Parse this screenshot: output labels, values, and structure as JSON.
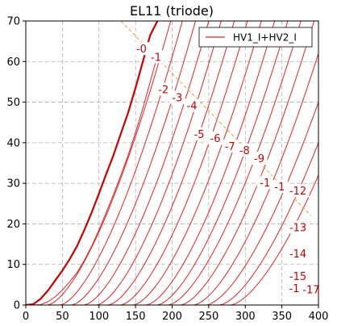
{
  "chart_data": {
    "type": "line",
    "title": "EL11 (triode)",
    "xlabel": "",
    "ylabel": "",
    "xlim": [
      0,
      400
    ],
    "ylim": [
      0,
      70
    ],
    "x_ticks": [
      0,
      50,
      100,
      150,
      200,
      250,
      300,
      350,
      400
    ],
    "y_ticks": [
      0,
      10,
      20,
      30,
      40,
      50,
      60,
      70
    ],
    "grid": true,
    "grid_style": "dashed",
    "legend": {
      "placement": "top-right",
      "entries": [
        "HV1_I+HV2_I"
      ]
    },
    "colors": {
      "curves": "#e32222",
      "zero_curve": "#cc0000",
      "load_line": "#f0a030",
      "grid": "#b0b0b0",
      "axis": "#000000"
    },
    "load_line": {
      "x": [
        130,
        390
      ],
      "y": [
        70,
        22
      ]
    },
    "curve_labels": [
      {
        "text": "-0",
        "x": 158,
        "y": 63
      },
      {
        "text": "-1",
        "x": 178,
        "y": 61
      },
      {
        "text": "-2",
        "x": 188,
        "y": 53
      },
      {
        "text": "-3",
        "x": 207,
        "y": 51
      },
      {
        "text": "-4",
        "x": 227,
        "y": 49
      },
      {
        "text": "-5",
        "x": 237,
        "y": 42
      },
      {
        "text": "-6",
        "x": 259,
        "y": 41
      },
      {
        "text": "-7",
        "x": 279,
        "y": 39
      },
      {
        "text": "-8",
        "x": 299,
        "y": 38
      },
      {
        "text": "-9",
        "x": 319,
        "y": 36
      },
      {
        "text": "-1",
        "x": 327,
        "y": 30
      },
      {
        "text": "-1",
        "x": 347,
        "y": 29
      },
      {
        "text": "-12",
        "x": 372,
        "y": 28
      },
      {
        "text": "-13",
        "x": 372,
        "y": 19
      },
      {
        "text": "-14",
        "x": 372,
        "y": 12.5
      },
      {
        "text": "-15",
        "x": 372,
        "y": 7
      },
      {
        "text": "-1",
        "x": 367,
        "y": 4
      },
      {
        "text": "-17",
        "x": 390,
        "y": 3.7
      }
    ],
    "series": [
      {
        "name": "HV1_I+HV2_I",
        "bias": 0,
        "x": [
          0,
          10,
          20,
          30,
          40,
          50,
          60,
          70,
          80,
          90,
          100,
          110,
          120,
          130,
          140,
          150,
          160,
          170,
          180
        ],
        "y": [
          0,
          0.2,
          1.5,
          3.5,
          6.0,
          8.5,
          11.3,
          14.5,
          18.5,
          22.8,
          27.5,
          32.3,
          37.0,
          42.3,
          47.5,
          53.5,
          60.0,
          66.5,
          70.0
        ]
      },
      {
        "bias": -1,
        "x": [
          10,
          20,
          30,
          40,
          50,
          60,
          70,
          80,
          90,
          100,
          110,
          120,
          130,
          140,
          150,
          160,
          170,
          180
        ],
        "y": [
          0,
          0.1,
          0.8,
          2.0,
          3.7,
          5.7,
          8.0,
          11.0,
          14.5,
          18.5,
          22.8,
          27.3,
          32.0,
          37.0,
          42.5,
          48.5,
          55.0,
          61.5
        ]
      }
    ],
    "family": {
      "biases": [
        -1,
        -2,
        -3,
        -4,
        -5,
        -6,
        -7,
        -8,
        -9,
        -10,
        -11,
        -12,
        -13,
        -14,
        -15,
        -16,
        -17
      ],
      "onset_x": [
        10,
        30,
        47,
        63,
        80,
        97,
        113,
        130,
        147,
        165,
        180,
        195,
        212,
        230,
        247,
        265,
        280
      ],
      "top_x": [
        182,
        198,
        214,
        232,
        250,
        267,
        285,
        303,
        322,
        340,
        358,
        376,
        394,
        400,
        400,
        400,
        400
      ],
      "top_y": [
        70,
        70,
        70,
        70,
        70,
        70,
        70,
        70,
        70,
        70,
        70,
        70,
        70,
        62,
        50,
        40,
        32
      ]
    }
  }
}
